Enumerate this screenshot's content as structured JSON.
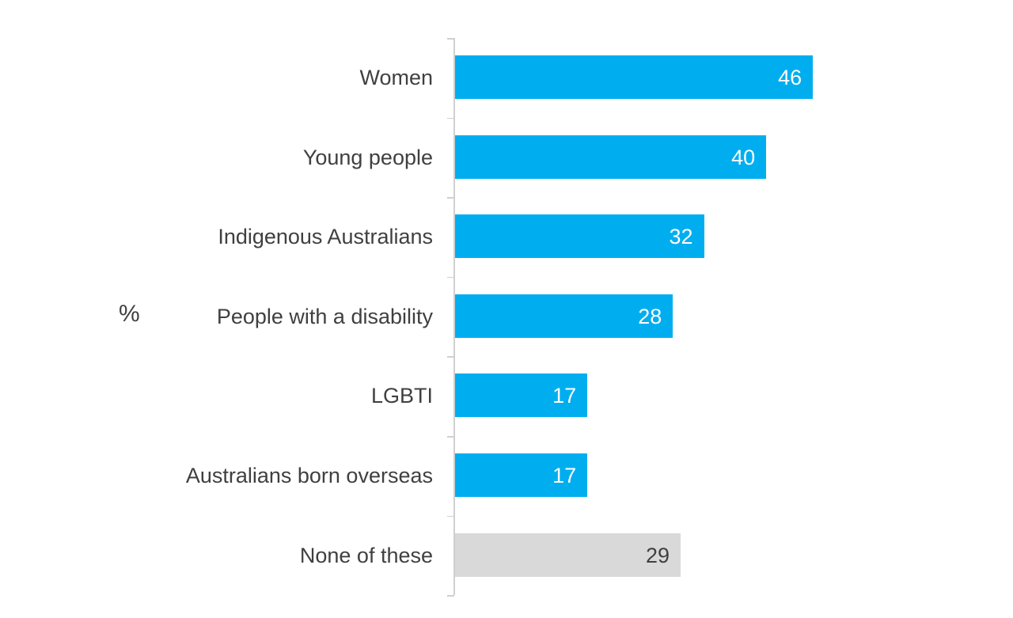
{
  "chart_data": {
    "type": "bar",
    "orientation": "horizontal",
    "title": "",
    "xlabel": "",
    "ylabel": "%",
    "categories": [
      "Women",
      "Young people",
      "Indigenous Australians",
      "People with a disability",
      "LGBTI",
      "Australians born overseas",
      "None of these"
    ],
    "values": [
      46,
      40,
      32,
      28,
      17,
      17,
      29
    ],
    "colors": [
      "#00AEEF",
      "#00AEEF",
      "#00AEEF",
      "#00AEEF",
      "#00AEEF",
      "#00AEEF",
      "#D9D9D9"
    ],
    "value_label_colors": [
      "#FFFFFF",
      "#FFFFFF",
      "#FFFFFF",
      "#FFFFFF",
      "#FFFFFF",
      "#FFFFFF",
      "#404040"
    ],
    "xlim": [
      0,
      71
    ],
    "grid": false,
    "legend": null,
    "data_labels": true
  },
  "ylabel": "%"
}
